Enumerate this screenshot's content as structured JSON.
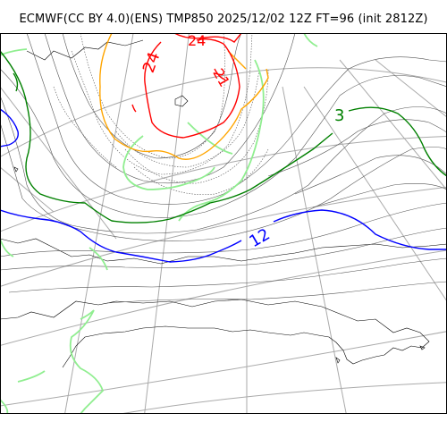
{
  "title": "ECMWF(CC BY 4.0)(ENS) TMP850 2025/12/02 12Z FT=96 (init 2812Z)",
  "contour_labels": [
    {
      "text": "24",
      "color": "#ff0000"
    },
    {
      "text": "24",
      "color": "#ff0000"
    },
    {
      "text": "21",
      "color": "#ff0000"
    },
    {
      "text": "3",
      "color": "#008000"
    },
    {
      "text": "12",
      "color": "#0000ff"
    }
  ],
  "colors": {
    "red": "#ff0000",
    "orange": "#ffa500",
    "lightgreen": "#90ee90",
    "green": "#008000",
    "blue": "#0000ff",
    "isotherm_gray": "#555555",
    "coast": "#000000",
    "grid": "#aaaaaa",
    "frame": "#000000"
  }
}
